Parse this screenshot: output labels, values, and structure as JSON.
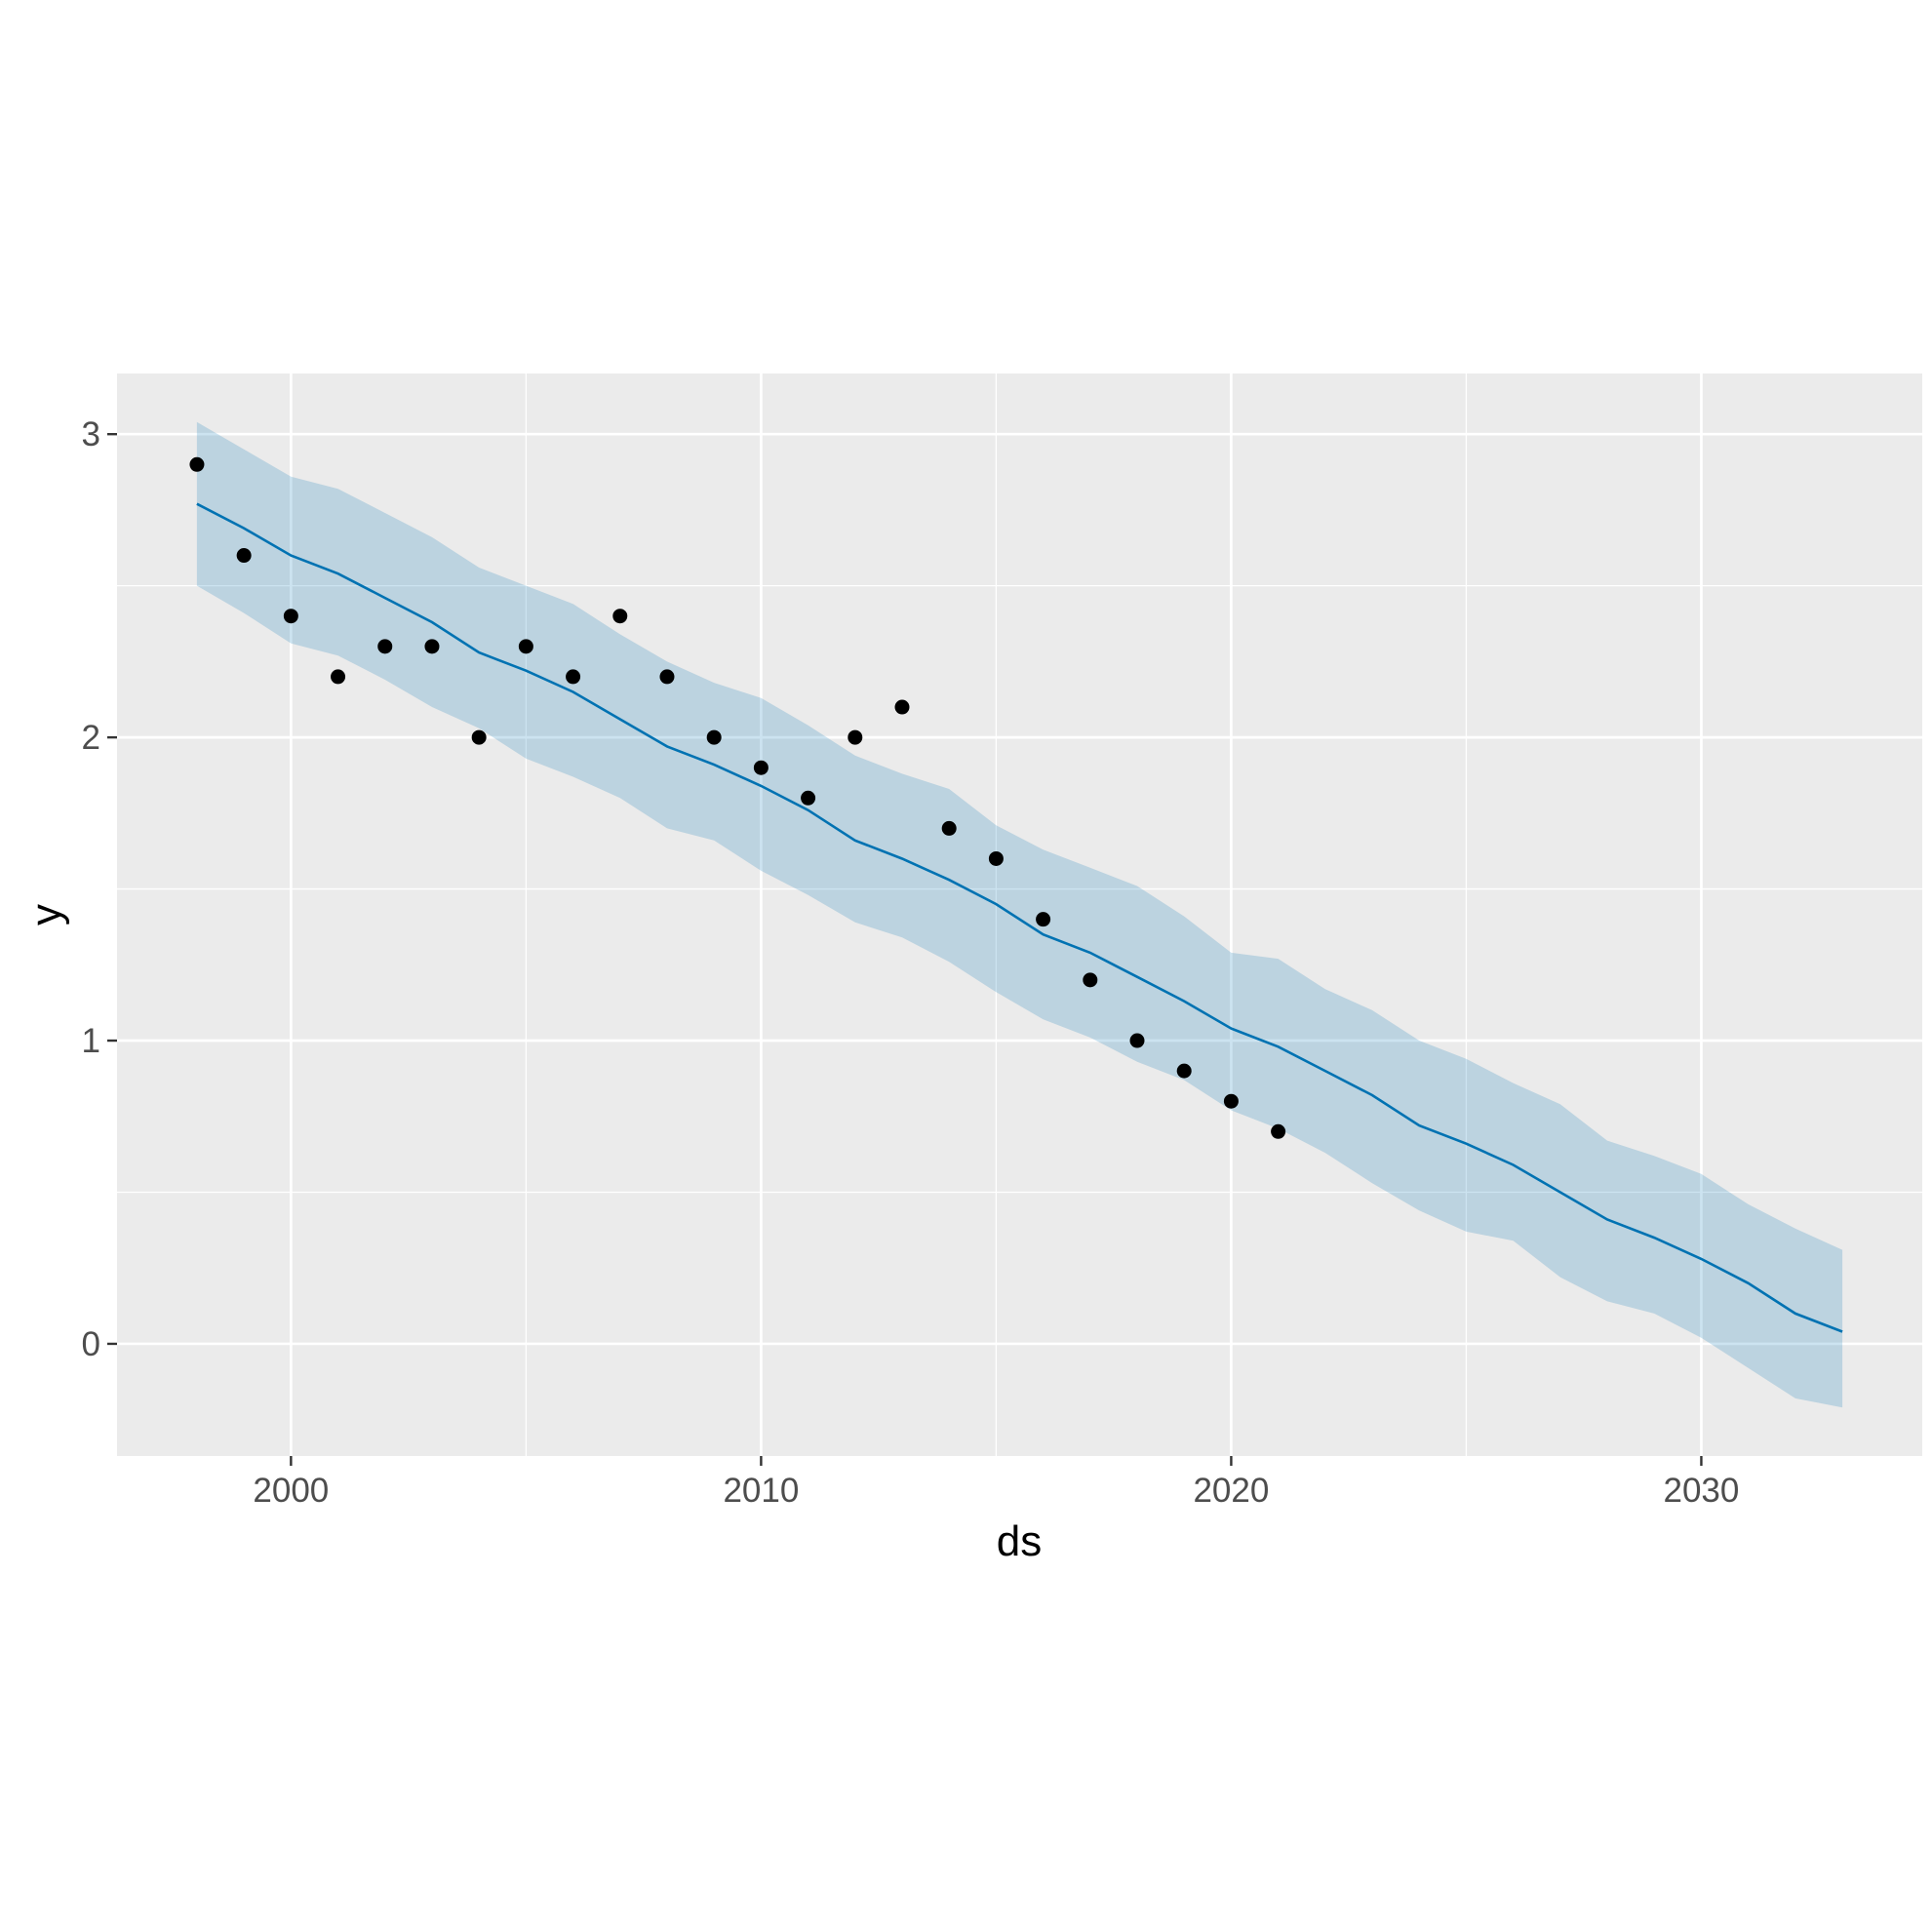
{
  "chart_data": {
    "type": "line",
    "title": "",
    "xlabel": "ds",
    "ylabel": "y",
    "xlim": [
      1996.3,
      2034.7
    ],
    "ylim": [
      -0.37,
      3.2
    ],
    "x_ticks": [
      2000,
      2010,
      2020,
      2030
    ],
    "x_tick_labels": [
      "2000",
      "2010",
      "2020",
      "2030"
    ],
    "y_ticks": [
      0,
      1,
      2,
      3
    ],
    "y_tick_labels": [
      "0",
      "1",
      "2",
      "3"
    ],
    "grid": true,
    "legend": "none",
    "colors": {
      "fit": "#0072b2",
      "band": "#0072b2",
      "points": "#000000",
      "panel": "#ebebeb"
    },
    "observed": {
      "x": [
        1998,
        1999,
        2000,
        2001,
        2002,
        2003,
        2004,
        2005,
        2006,
        2007,
        2008,
        2009,
        2010,
        2011,
        2012,
        2013,
        2014,
        2015,
        2016,
        2017,
        2018,
        2019,
        2020,
        2021
      ],
      "y": [
        2.9,
        2.6,
        2.4,
        2.2,
        2.3,
        2.3,
        2.0,
        2.3,
        2.2,
        2.4,
        2.2,
        2.0,
        1.9,
        1.8,
        2.0,
        2.1,
        1.7,
        1.6,
        1.4,
        1.2,
        1.0,
        0.9,
        0.8,
        0.7
      ]
    },
    "forecast": {
      "x": [
        1998,
        1999,
        2000,
        2001,
        2002,
        2003,
        2004,
        2005,
        2006,
        2007,
        2008,
        2009,
        2010,
        2011,
        2012,
        2013,
        2014,
        2015,
        2016,
        2017,
        2018,
        2019,
        2020,
        2021,
        2022,
        2023,
        2024,
        2025,
        2026,
        2027,
        2028,
        2029,
        2030,
        2031,
        2032,
        2033
      ],
      "yhat": [
        2.77,
        2.69,
        2.6,
        2.54,
        2.46,
        2.38,
        2.28,
        2.22,
        2.15,
        2.06,
        1.97,
        1.91,
        1.84,
        1.76,
        1.66,
        1.6,
        1.53,
        1.45,
        1.35,
        1.29,
        1.21,
        1.13,
        1.04,
        0.98,
        0.9,
        0.82,
        0.72,
        0.66,
        0.59,
        0.5,
        0.41,
        0.35,
        0.28,
        0.2,
        0.1,
        0.04
      ],
      "yhat_upper": [
        3.04,
        2.95,
        2.86,
        2.82,
        2.74,
        2.66,
        2.56,
        2.5,
        2.44,
        2.34,
        2.25,
        2.18,
        2.13,
        2.04,
        1.94,
        1.88,
        1.83,
        1.71,
        1.63,
        1.57,
        1.51,
        1.41,
        1.29,
        1.27,
        1.17,
        1.1,
        1.0,
        0.94,
        0.86,
        0.79,
        0.67,
        0.62,
        0.56,
        0.46,
        0.38,
        0.31
      ],
      "yhat_lower": [
        2.5,
        2.41,
        2.31,
        2.27,
        2.19,
        2.1,
        2.03,
        1.93,
        1.87,
        1.8,
        1.7,
        1.66,
        1.56,
        1.48,
        1.39,
        1.34,
        1.26,
        1.16,
        1.07,
        1.01,
        0.93,
        0.87,
        0.77,
        0.71,
        0.63,
        0.53,
        0.44,
        0.37,
        0.34,
        0.22,
        0.14,
        0.1,
        0.02,
        -0.08,
        -0.18,
        -0.21
      ]
    }
  }
}
